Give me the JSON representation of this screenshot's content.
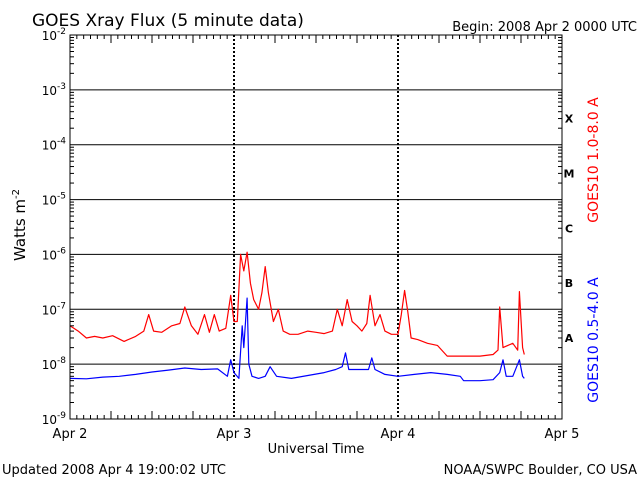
{
  "chart_data": {
    "type": "line",
    "title": "GOES Xray Flux (5 minute data)",
    "begin": "Begin:  2008 Apr 2 0000 UTC",
    "xlabel": "Universal Time",
    "ylabel": "Watts m",
    "ylabel_exp": "-2",
    "y_scale": "log",
    "ylim": [
      1e-09,
      0.01
    ],
    "grid": true,
    "y_ticks": [
      {
        "base": "10",
        "exp": "-2",
        "value": 0.01
      },
      {
        "base": "10",
        "exp": "-3",
        "value": 0.001
      },
      {
        "base": "10",
        "exp": "-4",
        "value": 0.0001
      },
      {
        "base": "10",
        "exp": "-5",
        "value": 1e-05
      },
      {
        "base": "10",
        "exp": "-6",
        "value": 1e-06
      },
      {
        "base": "10",
        "exp": "-7",
        "value": 1e-07
      },
      {
        "base": "10",
        "exp": "-8",
        "value": 1e-08
      },
      {
        "base": "10",
        "exp": "-9",
        "value": 1e-09
      }
    ],
    "x_ticks": [
      {
        "label": "Apr 2",
        "day": 0
      },
      {
        "label": "Apr 3",
        "day": 1
      },
      {
        "label": "Apr 4",
        "day": 2
      },
      {
        "label": "Apr 5",
        "day": 3
      }
    ],
    "xlim_days": [
      0,
      3
    ],
    "flare_classes": [
      {
        "label": "X",
        "value": 0.0003
      },
      {
        "label": "M",
        "value": 3e-05
      },
      {
        "label": "C",
        "value": 3e-06
      },
      {
        "label": "B",
        "value": 3e-07
      },
      {
        "label": "A",
        "value": 3e-08
      }
    ],
    "series": [
      {
        "name": "GOES10 1.0-8.0 A",
        "color": "#ff0000",
        "points": [
          [
            0.0,
            5e-08
          ],
          [
            0.05,
            4e-08
          ],
          [
            0.1,
            3e-08
          ],
          [
            0.15,
            3.2e-08
          ],
          [
            0.2,
            3e-08
          ],
          [
            0.26,
            3.3e-08
          ],
          [
            0.33,
            2.6e-08
          ],
          [
            0.4,
            3.2e-08
          ],
          [
            0.45,
            4e-08
          ],
          [
            0.48,
            8e-08
          ],
          [
            0.51,
            4e-08
          ],
          [
            0.56,
            3.8e-08
          ],
          [
            0.62,
            5e-08
          ],
          [
            0.67,
            5.5e-08
          ],
          [
            0.7,
            1.1e-07
          ],
          [
            0.74,
            5e-08
          ],
          [
            0.78,
            3.5e-08
          ],
          [
            0.82,
            8e-08
          ],
          [
            0.85,
            3.8e-08
          ],
          [
            0.88,
            8e-08
          ],
          [
            0.91,
            4e-08
          ],
          [
            0.95,
            4.5e-08
          ],
          [
            0.98,
            1.8e-07
          ],
          [
            1.0,
            6e-08
          ],
          [
            1.02,
            6e-08
          ],
          [
            1.04,
            1e-06
          ],
          [
            1.06,
            5e-07
          ],
          [
            1.08,
            1.1e-06
          ],
          [
            1.1,
            3e-07
          ],
          [
            1.12,
            1.5e-07
          ],
          [
            1.15,
            1e-07
          ],
          [
            1.17,
            2e-07
          ],
          [
            1.19,
            6e-07
          ],
          [
            1.21,
            2e-07
          ],
          [
            1.24,
            6e-08
          ],
          [
            1.27,
            1e-07
          ],
          [
            1.3,
            4e-08
          ],
          [
            1.34,
            3.5e-08
          ],
          [
            1.39,
            3.5e-08
          ],
          [
            1.45,
            4e-08
          ],
          [
            1.5,
            3.8e-08
          ],
          [
            1.55,
            3.6e-08
          ],
          [
            1.6,
            4e-08
          ],
          [
            1.63,
            1e-07
          ],
          [
            1.66,
            5e-08
          ],
          [
            1.69,
            1.5e-07
          ],
          [
            1.72,
            6e-08
          ],
          [
            1.75,
            5e-08
          ],
          [
            1.78,
            4e-08
          ],
          [
            1.81,
            5.5e-08
          ],
          [
            1.83,
            1.8e-07
          ],
          [
            1.86,
            5e-08
          ],
          [
            1.89,
            8e-08
          ],
          [
            1.92,
            4e-08
          ],
          [
            1.96,
            3.5e-08
          ],
          [
            2.0,
            3.5e-08
          ],
          [
            2.02,
            8e-08
          ],
          [
            2.04,
            2.2e-07
          ],
          [
            2.06,
            9e-08
          ],
          [
            2.08,
            3e-08
          ],
          [
            2.12,
            2.8e-08
          ],
          [
            2.18,
            2.4e-08
          ],
          [
            2.24,
            2.2e-08
          ],
          [
            2.3,
            1.4e-08
          ],
          [
            2.4,
            1.4e-08
          ],
          [
            2.5,
            1.4e-08
          ],
          [
            2.58,
            1.5e-08
          ],
          [
            2.61,
            1.8e-08
          ],
          [
            2.62,
            1.1e-07
          ],
          [
            2.64,
            2e-08
          ],
          [
            2.7,
            2.4e-08
          ],
          [
            2.73,
            1.8e-08
          ],
          [
            2.74,
            2.1e-07
          ],
          [
            2.76,
            2e-08
          ],
          [
            2.77,
            1.5e-08
          ]
        ]
      },
      {
        "name": "GOES10 0.5-4.0 A",
        "color": "#0000ff",
        "points": [
          [
            0.0,
            5.5e-09
          ],
          [
            0.1,
            5.4e-09
          ],
          [
            0.2,
            5.8e-09
          ],
          [
            0.3,
            6e-09
          ],
          [
            0.4,
            6.5e-09
          ],
          [
            0.5,
            7.2e-09
          ],
          [
            0.6,
            7.8e-09
          ],
          [
            0.7,
            8.5e-09
          ],
          [
            0.8,
            8e-09
          ],
          [
            0.9,
            8.2e-09
          ],
          [
            0.96,
            6e-09
          ],
          [
            0.98,
            1.2e-08
          ],
          [
            1.0,
            7e-09
          ],
          [
            1.03,
            5.5e-09
          ],
          [
            1.05,
            5e-08
          ],
          [
            1.06,
            2e-08
          ],
          [
            1.08,
            1.6e-07
          ],
          [
            1.09,
            1e-08
          ],
          [
            1.11,
            6e-09
          ],
          [
            1.15,
            5.5e-09
          ],
          [
            1.19,
            6e-09
          ],
          [
            1.22,
            9e-09
          ],
          [
            1.26,
            6e-09
          ],
          [
            1.35,
            5.5e-09
          ],
          [
            1.45,
            6.2e-09
          ],
          [
            1.55,
            7e-09
          ],
          [
            1.62,
            8e-09
          ],
          [
            1.66,
            9e-09
          ],
          [
            1.68,
            1.6e-08
          ],
          [
            1.7,
            8e-09
          ],
          [
            1.76,
            8e-09
          ],
          [
            1.82,
            8e-09
          ],
          [
            1.84,
            1.3e-08
          ],
          [
            1.86,
            8e-09
          ],
          [
            1.92,
            6.5e-09
          ],
          [
            2.0,
            6e-09
          ],
          [
            2.1,
            6.5e-09
          ],
          [
            2.2,
            7e-09
          ],
          [
            2.3,
            6.5e-09
          ],
          [
            2.38,
            6e-09
          ],
          [
            2.4,
            5e-09
          ],
          [
            2.5,
            5e-09
          ],
          [
            2.58,
            5.2e-09
          ],
          [
            2.62,
            7e-09
          ],
          [
            2.64,
            1.2e-08
          ],
          [
            2.66,
            6e-09
          ],
          [
            2.7,
            6e-09
          ],
          [
            2.74,
            1.2e-08
          ],
          [
            2.76,
            6e-09
          ],
          [
            2.77,
            5.5e-09
          ]
        ]
      }
    ]
  },
  "footer": {
    "updated": "Updated 2008 Apr  4 19:00:02 UTC",
    "credit": "NOAA/SWPC Boulder, CO USA"
  }
}
